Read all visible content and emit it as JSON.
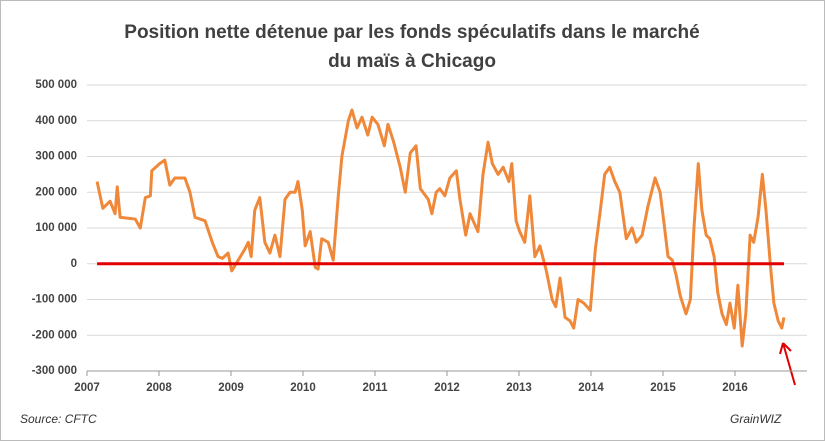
{
  "chart_data": {
    "type": "line",
    "title": [
      "Position  nette détenue par les fonds spéculatifs dans le marché",
      "du maïs à Chicago"
    ],
    "source": "Source: CFTC",
    "logo": "GrainWIZ",
    "x": [
      2007.14,
      2007.22,
      2007.32,
      2007.39,
      2007.42,
      2007.46,
      2007.67,
      2007.74,
      2007.81,
      2007.88,
      2007.9,
      2008.01,
      2008.08,
      2008.15,
      2008.22,
      2008.36,
      2008.43,
      2008.5,
      2008.64,
      2008.74,
      2008.82,
      2008.88,
      2008.96,
      2009.01,
      2009.1,
      2009.19,
      2009.24,
      2009.28,
      2009.33,
      2009.4,
      2009.47,
      2009.54,
      2009.61,
      2009.68,
      2009.75,
      2009.82,
      2009.89,
      2009.93,
      2009.99,
      2010.03,
      2010.1,
      2010.17,
      2010.21,
      2010.26,
      2010.35,
      2010.42,
      2010.49,
      2010.54,
      2010.63,
      2010.68,
      2010.75,
      2010.82,
      2010.9,
      2010.96,
      2011.04,
      2011.13,
      2011.18,
      2011.26,
      2011.35,
      2011.42,
      2011.49,
      2011.57,
      2011.63,
      2011.74,
      2011.79,
      2011.85,
      2011.9,
      2011.97,
      2012.04,
      2012.13,
      2012.18,
      2012.26,
      2012.32,
      2012.43,
      2012.5,
      2012.57,
      2012.63,
      2012.71,
      2012.78,
      2012.86,
      2012.9,
      2012.96,
      2013.01,
      2013.08,
      2013.15,
      2013.22,
      2013.29,
      2013.38,
      2013.46,
      2013.51,
      2013.57,
      2013.64,
      2013.71,
      2013.76,
      2013.82,
      2013.9,
      2013.99,
      2014.06,
      2014.13,
      2014.19,
      2014.26,
      2014.33,
      2014.4,
      2014.49,
      2014.57,
      2014.63,
      2014.71,
      2014.79,
      2014.89,
      2014.96,
      2015.01,
      2015.07,
      2015.13,
      2015.18,
      2015.24,
      2015.32,
      2015.38,
      2015.43,
      2015.49,
      2015.54,
      2015.6,
      2015.65,
      2015.71,
      2015.76,
      2015.82,
      2015.88,
      2015.93,
      2015.99,
      2016.04,
      2016.1,
      2016.15,
      2016.21,
      2016.26,
      2016.32,
      2016.38,
      2016.43,
      2016.49,
      2016.54,
      2016.6,
      2016.65,
      2016.68
    ],
    "series": [
      {
        "color": "#f0883a",
        "values": [
          230000,
          155000,
          175000,
          140000,
          215000,
          130000,
          125000,
          100000,
          185000,
          190000,
          260000,
          280000,
          290000,
          220000,
          240000,
          240000,
          200000,
          130000,
          120000,
          60000,
          20000,
          15000,
          30000,
          -20000,
          10000,
          40000,
          60000,
          20000,
          150000,
          185000,
          60000,
          30000,
          80000,
          20000,
          180000,
          200000,
          200000,
          230000,
          150000,
          50000,
          90000,
          -10000,
          -15000,
          70000,
          60000,
          10000,
          190000,
          300000,
          400000,
          430000,
          380000,
          410000,
          360000,
          410000,
          390000,
          330000,
          390000,
          340000,
          270000,
          200000,
          310000,
          330000,
          210000,
          180000,
          140000,
          200000,
          210000,
          190000,
          240000,
          260000,
          180000,
          80000,
          140000,
          90000,
          250000,
          340000,
          280000,
          250000,
          270000,
          230000,
          280000,
          120000,
          90000,
          60000,
          190000,
          20000,
          50000,
          -20000,
          -100000,
          -120000,
          -40000,
          -150000,
          -160000,
          -180000,
          -100000,
          -110000,
          -130000,
          40000,
          150000,
          250000,
          270000,
          230000,
          200000,
          70000,
          100000,
          60000,
          80000,
          160000,
          240000,
          200000,
          120000,
          20000,
          10000,
          -30000,
          -90000,
          -140000,
          -100000,
          100000,
          280000,
          150000,
          80000,
          70000,
          20000,
          -80000,
          -140000,
          -170000,
          -110000,
          -180000,
          -60000,
          -230000,
          -140000,
          80000,
          60000,
          130000,
          250000,
          150000,
          0,
          -110000,
          -160000,
          -180000,
          -150000
        ]
      }
    ],
    "reference_line": {
      "value": 0,
      "color": "#e00000"
    },
    "xlim": [
      2007,
      2017
    ],
    "xticks": [
      2007,
      2008,
      2009,
      2010,
      2011,
      2012,
      2013,
      2014,
      2015,
      2016
    ],
    "ylim": [
      -300000,
      500000
    ],
    "yticks": [
      {
        "value": -300000,
        "label": "-300 000"
      },
      {
        "value": -200000,
        "label": "-200 000"
      },
      {
        "value": -100000,
        "label": "-100 000"
      },
      0,
      {
        "value": 100000,
        "label": "100 000"
      },
      {
        "value": 200000,
        "label": "200 000"
      },
      {
        "value": 300000,
        "label": "300 000"
      },
      {
        "value": 400000,
        "label": "400 000"
      },
      {
        "value": 500000,
        "label": "500 000"
      }
    ],
    "grid": true
  }
}
